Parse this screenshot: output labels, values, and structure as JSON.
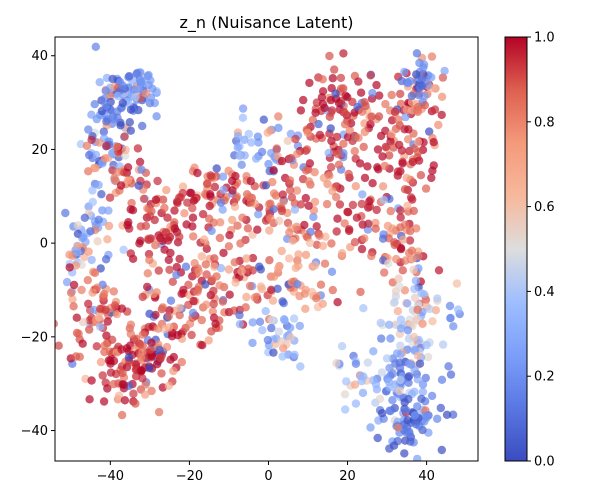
{
  "chart_data": {
    "type": "scatter",
    "title": "z_n (Nuisance Latent)",
    "xlabel": "",
    "ylabel": "",
    "xlim": [
      -54,
      53
    ],
    "ylim": [
      -46.5,
      44
    ],
    "x_ticks": [
      -40,
      -20,
      0,
      20,
      40
    ],
    "y_ticks": [
      -40,
      -20,
      0,
      20,
      40
    ],
    "x_tick_labels": [
      "−40",
      "−20",
      "0",
      "20",
      "40"
    ],
    "y_tick_labels": [
      "−40",
      "−20",
      "0",
      "20",
      "40"
    ],
    "grid": false,
    "colormap": "coolwarm",
    "colorbar": {
      "range": [
        0.0,
        1.0
      ],
      "ticks": [
        0.0,
        0.2,
        0.4,
        0.6,
        0.8,
        1.0
      ],
      "tick_labels": [
        "0.0",
        "0.2",
        "0.4",
        "0.6",
        "0.8",
        "1.0"
      ]
    },
    "colors": {
      "low": "#3b4cc0",
      "mid": "#dddddd",
      "high": "#b40426"
    },
    "point_alpha": 0.7,
    "clusters": [
      {
        "x": -38,
        "y": 30,
        "sx": 3.5,
        "sy": 4,
        "n": 70,
        "value": 0.15
      },
      {
        "x": -32,
        "y": 33,
        "sx": 3,
        "sy": 2,
        "n": 40,
        "value": 0.2
      },
      {
        "x": -43,
        "y": 20,
        "sx": 3,
        "sy": 4,
        "n": 40,
        "value": 0.2
      },
      {
        "x": -44,
        "y": 5,
        "sx": 3,
        "sy": 4,
        "n": 30,
        "value": 0.25
      },
      {
        "x": -47,
        "y": -2,
        "sx": 2,
        "sy": 3,
        "n": 20,
        "value": 0.3
      },
      {
        "x": -35,
        "y": 15,
        "sx": 4,
        "sy": 4,
        "n": 40,
        "value": 0.85
      },
      {
        "x": -43,
        "y": -15,
        "sx": 4,
        "sy": 6,
        "n": 70,
        "value": 0.9
      },
      {
        "x": -35,
        "y": -26,
        "sx": 5,
        "sy": 4,
        "n": 110,
        "value": 0.95
      },
      {
        "x": -26,
        "y": -20,
        "sx": 4,
        "sy": 5,
        "n": 50,
        "value": 0.9
      },
      {
        "x": -28,
        "y": 4,
        "sx": 4,
        "sy": 5,
        "n": 60,
        "value": 0.95
      },
      {
        "x": -18,
        "y": -10,
        "sx": 5,
        "sy": 5,
        "n": 70,
        "value": 0.9
      },
      {
        "x": -15,
        "y": 8,
        "sx": 5,
        "sy": 5,
        "n": 50,
        "value": 0.9
      },
      {
        "x": -5,
        "y": 12,
        "sx": 6,
        "sy": 5,
        "n": 60,
        "value": 0.9
      },
      {
        "x": -4,
        "y": -8,
        "sx": 4,
        "sy": 4,
        "n": 40,
        "value": 0.9
      },
      {
        "x": 2,
        "y": 20,
        "sx": 3,
        "sy": 3,
        "n": 25,
        "value": 0.2
      },
      {
        "x": 3,
        "y": -20,
        "sx": 3,
        "sy": 3,
        "n": 35,
        "value": 0.3
      },
      {
        "x": 8,
        "y": 5,
        "sx": 5,
        "sy": 6,
        "n": 60,
        "value": 0.85
      },
      {
        "x": 10,
        "y": -8,
        "sx": 5,
        "sy": 4,
        "n": 40,
        "value": 0.8
      },
      {
        "x": 15,
        "y": 20,
        "sx": 5,
        "sy": 6,
        "n": 60,
        "value": 0.95
      },
      {
        "x": 20,
        "y": 30,
        "sx": 4,
        "sy": 4,
        "n": 50,
        "value": 0.98
      },
      {
        "x": 22,
        "y": 8,
        "sx": 4,
        "sy": 5,
        "n": 40,
        "value": 0.95
      },
      {
        "x": 33,
        "y": 20,
        "sx": 5,
        "sy": 5,
        "n": 80,
        "value": 0.95
      },
      {
        "x": 36,
        "y": 30,
        "sx": 4,
        "sy": 4,
        "n": 40,
        "value": 0.85
      },
      {
        "x": 39,
        "y": 35,
        "sx": 2,
        "sy": 3,
        "n": 30,
        "value": 0.15
      },
      {
        "x": 34,
        "y": 0,
        "sx": 4,
        "sy": 6,
        "n": 60,
        "value": 0.85
      },
      {
        "x": 36,
        "y": -15,
        "sx": 4,
        "sy": 5,
        "n": 60,
        "value": 0.5
      },
      {
        "x": 34,
        "y": -30,
        "sx": 5,
        "sy": 5,
        "n": 80,
        "value": 0.2
      },
      {
        "x": 36,
        "y": -38,
        "sx": 4,
        "sy": 3,
        "n": 60,
        "value": 0.1
      },
      {
        "x": 25,
        "y": -28,
        "sx": 4,
        "sy": 3,
        "n": 30,
        "value": 0.4
      },
      {
        "x": 47,
        "y": -15,
        "sx": 1.5,
        "sy": 1,
        "n": 6,
        "value": 0.1
      },
      {
        "x": -8,
        "y": 22,
        "sx": 3,
        "sy": 3,
        "n": 15,
        "value": 0.3
      }
    ]
  }
}
